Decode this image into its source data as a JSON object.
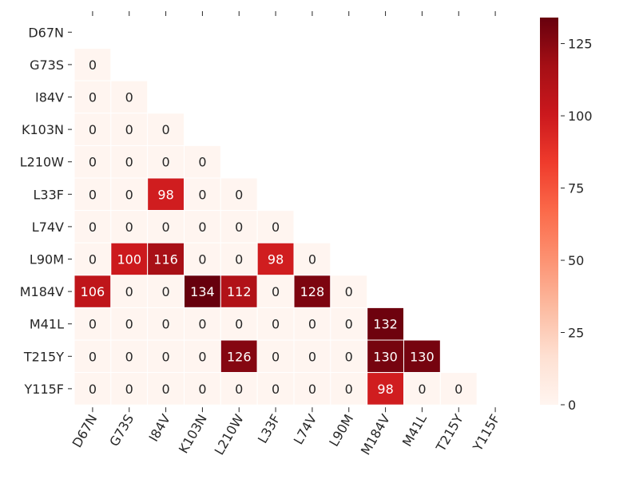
{
  "chart_data": {
    "type": "heatmap",
    "title": "",
    "xlabel": "",
    "ylabel": "",
    "rows": [
      "D67N",
      "G73S",
      "I84V",
      "K103N",
      "L210W",
      "L33F",
      "L74V",
      "L90M",
      "M184V",
      "M41L",
      "T215Y",
      "Y115F"
    ],
    "cols": [
      "D67N",
      "G73S",
      "I84V",
      "K103N",
      "L210W",
      "L33F",
      "L74V",
      "L90M",
      "M184V",
      "M41L",
      "T215Y",
      "Y115F"
    ],
    "mask": "upper triangle including diagonal",
    "values": [
      [],
      [
        0
      ],
      [
        0,
        0
      ],
      [
        0,
        0,
        0
      ],
      [
        0,
        0,
        0,
        0
      ],
      [
        0,
        0,
        98,
        0,
        0
      ],
      [
        0,
        0,
        0,
        0,
        0,
        0
      ],
      [
        0,
        100,
        116,
        0,
        0,
        98,
        0
      ],
      [
        106,
        0,
        0,
        134,
        112,
        0,
        128,
        0
      ],
      [
        0,
        0,
        0,
        0,
        0,
        0,
        0,
        0,
        132
      ],
      [
        0,
        0,
        0,
        0,
        126,
        0,
        0,
        0,
        130,
        130
      ],
      [
        0,
        0,
        0,
        0,
        0,
        0,
        0,
        0,
        98,
        0,
        0
      ]
    ],
    "colormap": "Reds",
    "colormap_stops": [
      "#fff5f0",
      "#fee0d2",
      "#fcbba1",
      "#fc9272",
      "#fb6a4a",
      "#ef3b2c",
      "#cb181d",
      "#a50f15",
      "#67000d"
    ],
    "vmin": 0,
    "vmax": 134,
    "colorbar_ticks": [
      "0",
      "25",
      "50",
      "75",
      "100",
      "125"
    ],
    "annotation_color_light": "#ffffff",
    "annotation_color_dark": "#262626",
    "grid_line_color": "#ffffff"
  }
}
